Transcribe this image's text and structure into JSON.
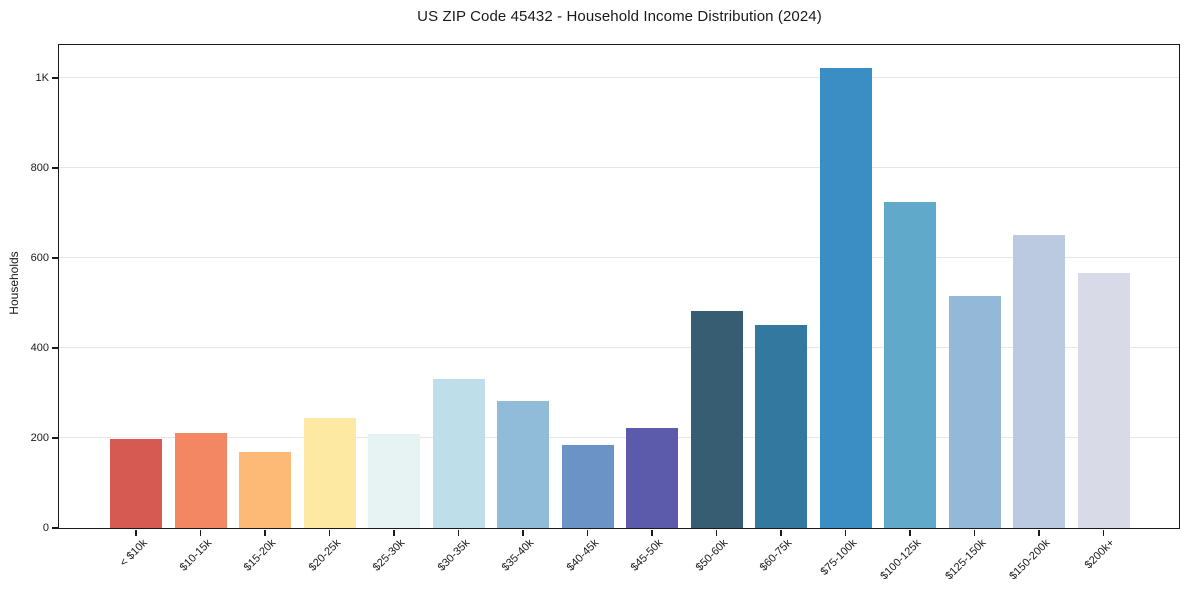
{
  "figure": {
    "title": "US ZIP Code 45432 - Household Income Distribution (2024)"
  },
  "chart_data": {
    "type": "bar",
    "title": "US ZIP Code 45432 - Household Income Distribution (2024)",
    "xlabel": "",
    "ylabel": "Households",
    "categories": [
      "< $10k",
      "$10-15k",
      "$15-20k",
      "$20-25k",
      "$25-30k",
      "$30-35k",
      "$35-40k",
      "$40-45k",
      "$45-50k",
      "$50-60k",
      "$60-75k",
      "$75-100k",
      "$100-125k",
      "$125-150k",
      "$150-200k",
      "$200k+"
    ],
    "values": [
      198,
      211,
      168,
      245,
      209,
      331,
      283,
      185,
      223,
      483,
      450,
      1021,
      725,
      516,
      652,
      566
    ],
    "bar_colors": [
      "#d65a52",
      "#f48763",
      "#fdba77",
      "#fde9a2",
      "#e7f2f3",
      "#bedfea",
      "#90bcda",
      "#6b93c5",
      "#5c5bab",
      "#375d72",
      "#32789f",
      "#3a8ec4",
      "#60a9cb",
      "#94b9d8",
      "#bbc9e1",
      "#d9dae7"
    ],
    "ylim": [
      0,
      1073
    ],
    "yticks": [
      {
        "value": 0,
        "label": "0"
      },
      {
        "value": 200,
        "label": "200"
      },
      {
        "value": 400,
        "label": "400"
      },
      {
        "value": 600,
        "label": "600"
      },
      {
        "value": 800,
        "label": "800"
      },
      {
        "value": 1000,
        "label": "1K"
      }
    ],
    "grid": "horizontal",
    "legend": "none",
    "plot_bg": "#ffffff",
    "grid_color": "#e6e6e6",
    "spine_color": "#1a1a1a"
  }
}
